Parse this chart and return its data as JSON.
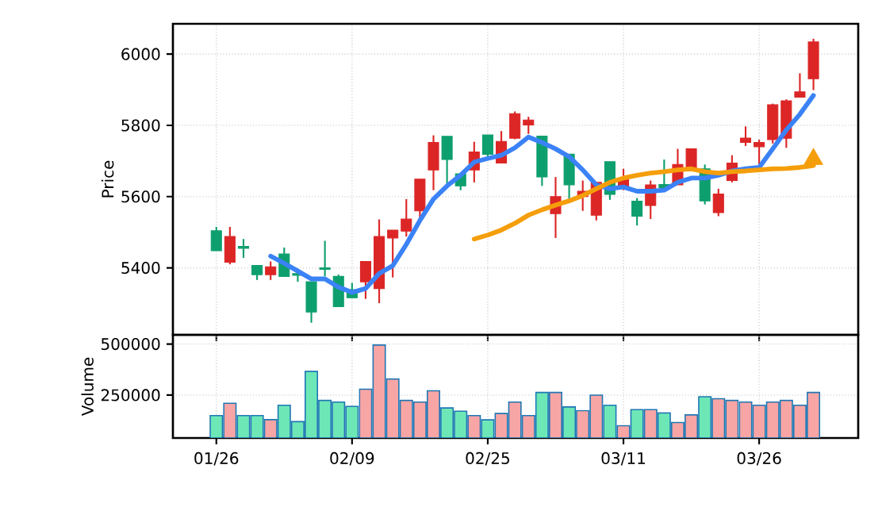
{
  "chart_data": [
    {
      "type": "candlestick",
      "ylabel": "Price",
      "ylim": [
        5212,
        6085
      ],
      "yticks": [
        5400,
        5600,
        5800,
        6000
      ],
      "grid": true,
      "categories": [
        null,
        null,
        null,
        null,
        null,
        null,
        null,
        null,
        null,
        null,
        null,
        null,
        null,
        null,
        null,
        null,
        null,
        null,
        null,
        null,
        null,
        null,
        null,
        null,
        null,
        null,
        null,
        null,
        null,
        null,
        null,
        null,
        null,
        null,
        null,
        null,
        null,
        null,
        null,
        null,
        null,
        null,
        null,
        null,
        null
      ],
      "ohlc": [
        [
          5504,
          5515,
          5448,
          5448
        ],
        [
          5416,
          5515,
          5410,
          5488
        ],
        [
          5460,
          5481,
          5428,
          5455
        ],
        [
          5407,
          5407,
          5366,
          5381
        ],
        [
          5381,
          5418,
          5366,
          5403
        ],
        [
          5439,
          5457,
          5376,
          5376
        ],
        [
          5384,
          5398,
          5361,
          5379
        ],
        [
          5361,
          5361,
          5246,
          5276
        ],
        [
          5400,
          5476,
          5376,
          5396
        ],
        [
          5376,
          5381,
          5291,
          5291
        ],
        [
          5339,
          5358,
          5316,
          5316
        ],
        [
          5361,
          5418,
          5313,
          5418
        ],
        [
          5342,
          5536,
          5301,
          5488
        ],
        [
          5484,
          5506,
          5373,
          5506
        ],
        [
          5503,
          5593,
          5488,
          5537
        ],
        [
          5560,
          5649,
          5540,
          5649
        ],
        [
          5675,
          5772,
          5618,
          5752
        ],
        [
          5769,
          5769,
          5627,
          5704
        ],
        [
          5664,
          5664,
          5618,
          5630
        ],
        [
          5675,
          5754,
          5640,
          5725
        ],
        [
          5773,
          5773,
          5704,
          5719
        ],
        [
          5694,
          5784,
          5694,
          5755
        ],
        [
          5764,
          5839,
          5761,
          5833
        ],
        [
          5801,
          5824,
          5776,
          5815
        ],
        [
          5770,
          5770,
          5630,
          5655
        ],
        [
          5552,
          5655,
          5484,
          5600
        ],
        [
          5719,
          5719,
          5593,
          5633
        ],
        [
          5600,
          5645,
          5560,
          5615
        ],
        [
          5548,
          5640,
          5533,
          5640
        ],
        [
          5698,
          5698,
          5591,
          5606
        ],
        [
          5627,
          5678,
          5618,
          5652
        ],
        [
          5587,
          5596,
          5519,
          5545
        ],
        [
          5575,
          5645,
          5537,
          5633
        ],
        [
          5634,
          5704,
          5625,
          5625
        ],
        [
          5633,
          5734,
          5633,
          5690
        ],
        [
          5675,
          5734,
          5675,
          5734
        ],
        [
          5678,
          5690,
          5578,
          5588
        ],
        [
          5555,
          5622,
          5545,
          5607
        ],
        [
          5645,
          5716,
          5640,
          5694
        ],
        [
          5752,
          5797,
          5742,
          5764
        ],
        [
          5740,
          5760,
          5690,
          5752
        ],
        [
          5760,
          5861,
          5749,
          5858
        ],
        [
          5764,
          5873,
          5737,
          5869
        ],
        [
          5879,
          5946,
          5879,
          5894
        ],
        [
          5931,
          6043,
          5899,
          6034
        ]
      ],
      "colors": [
        "#0e9f6e",
        "#dc2626",
        "#0e9f6e",
        "#0e9f6e",
        "#dc2626",
        "#0e9f6e",
        "#0e9f6e",
        "#0e9f6e",
        "#0e9f6e",
        "#0e9f6e",
        "#0e9f6e",
        "#dc2626",
        "#dc2626",
        "#dc2626",
        "#dc2626",
        "#dc2626",
        "#dc2626",
        "#0e9f6e",
        "#0e9f6e",
        "#dc2626",
        "#0e9f6e",
        "#dc2626",
        "#dc2626",
        "#dc2626",
        "#0e9f6e",
        "#dc2626",
        "#0e9f6e",
        "#dc2626",
        "#dc2626",
        "#0e9f6e",
        "#dc2626",
        "#0e9f6e",
        "#dc2626",
        "#0e9f6e",
        "#dc2626",
        "#dc2626",
        "#0e9f6e",
        "#dc2626",
        "#dc2626",
        "#dc2626",
        "#dc2626",
        "#dc2626",
        "#dc2626",
        "#dc2626",
        "#dc2626"
      ],
      "series": [
        {
          "type": "line",
          "color": "#3b82f6",
          "values": [
            null,
            null,
            null,
            null,
            5433,
            5413,
            5391,
            5369,
            5369,
            5346,
            5331,
            5342,
            5384,
            5406,
            5466,
            5533,
            5593,
            5630,
            5660,
            5697,
            5707,
            5716,
            5737,
            5767,
            5752,
            5734,
            5712,
            5675,
            5633,
            5622,
            5627,
            5615,
            5615,
            5618,
            5640,
            5652,
            5652,
            5660,
            5672,
            5678,
            5682,
            5734,
            5787,
            5831,
            5884
          ]
        },
        {
          "type": "line",
          "color": "#f59e0b",
          "values": [
            null,
            null,
            null,
            null,
            null,
            null,
            null,
            null,
            null,
            null,
            null,
            null,
            null,
            null,
            null,
            null,
            null,
            null,
            null,
            5481,
            5492,
            5506,
            5525,
            5548,
            5563,
            5576,
            5588,
            5603,
            5622,
            5640,
            5652,
            5660,
            5666,
            5670,
            5675,
            5678,
            5670,
            5666,
            5670,
            5672,
            5675,
            5678,
            5679,
            5682,
            5687
          ]
        },
        {
          "type": "scatter",
          "marker": "triangle",
          "color": "#f59e0b",
          "values": [
            null,
            null,
            null,
            null,
            null,
            null,
            null,
            null,
            null,
            null,
            null,
            null,
            null,
            null,
            null,
            null,
            null,
            null,
            null,
            null,
            null,
            null,
            null,
            null,
            null,
            null,
            null,
            null,
            null,
            null,
            null,
            null,
            null,
            null,
            null,
            null,
            null,
            null,
            null,
            null,
            null,
            null,
            null,
            null,
            5705
          ]
        }
      ]
    },
    {
      "type": "bar",
      "ylabel": "Volume",
      "ylim": [
        40000,
        545000
      ],
      "yticks": [
        250000,
        500000
      ],
      "grid": true,
      "categories": [
        "01/26",
        null,
        null,
        null,
        null,
        null,
        null,
        null,
        null,
        null,
        "02/09",
        null,
        null,
        null,
        null,
        null,
        null,
        null,
        null,
        null,
        "02/25",
        null,
        null,
        null,
        null,
        null,
        null,
        null,
        null,
        null,
        "03/11",
        null,
        null,
        null,
        null,
        null,
        null,
        null,
        null,
        null,
        "03/26",
        null,
        null,
        null,
        null
      ],
      "values": [
        150000,
        210000,
        150000,
        150000,
        130000,
        200000,
        120000,
        366000,
        224000,
        216000,
        195000,
        279000,
        495000,
        329000,
        224000,
        216000,
        271000,
        187000,
        171000,
        150000,
        129000,
        160000,
        216000,
        150000,
        263000,
        263000,
        192000,
        174000,
        250000,
        200000,
        100000,
        179000,
        179000,
        163000,
        116000,
        153000,
        242000,
        232000,
        224000,
        216000,
        200000,
        216000,
        224000,
        200000,
        263000
      ],
      "colors": [
        "#6ee7b7",
        "#f8a5a5",
        "#6ee7b7",
        "#6ee7b7",
        "#f8a5a5",
        "#6ee7b7",
        "#6ee7b7",
        "#6ee7b7",
        "#6ee7b7",
        "#6ee7b7",
        "#6ee7b7",
        "#f8a5a5",
        "#f8a5a5",
        "#f8a5a5",
        "#f8a5a5",
        "#f8a5a5",
        "#f8a5a5",
        "#6ee7b7",
        "#6ee7b7",
        "#f8a5a5",
        "#6ee7b7",
        "#f8a5a5",
        "#f8a5a5",
        "#f8a5a5",
        "#6ee7b7",
        "#f8a5a5",
        "#6ee7b7",
        "#f8a5a5",
        "#f8a5a5",
        "#6ee7b7",
        "#f8a5a5",
        "#6ee7b7",
        "#f8a5a5",
        "#6ee7b7",
        "#f8a5a5",
        "#f8a5a5",
        "#6ee7b7",
        "#f8a5a5",
        "#f8a5a5",
        "#f8a5a5",
        "#f8a5a5",
        "#f8a5a5",
        "#f8a5a5",
        "#f8a5a5",
        "#f8a5a5"
      ]
    }
  ]
}
